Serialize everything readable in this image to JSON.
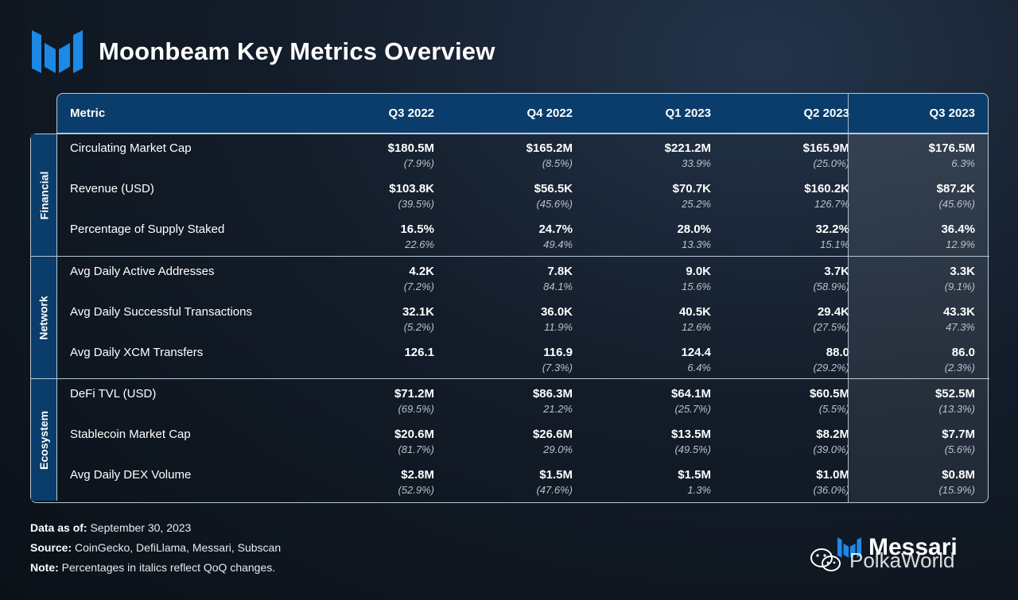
{
  "title": "Moonbeam Key Metrics Overview",
  "colors": {
    "header_bg": "#0a3d6b",
    "accent_blue": "#1e88e5",
    "border": "#b8c7d6"
  },
  "chart_data": {
    "type": "table",
    "title": "Moonbeam Key Metrics Overview",
    "columns": [
      "Metric",
      "Q3 2022",
      "Q4 2022",
      "Q1 2023",
      "Q2 2023",
      "Q3 2023"
    ],
    "sections": [
      {
        "name": "Financial",
        "rows": [
          {
            "metric": "Circulating Market Cap",
            "values": [
              "$180.5M",
              "$165.2M",
              "$221.2M",
              "$165.9M",
              "$176.5M"
            ],
            "changes": [
              "(7.9%)",
              "(8.5%)",
              "33.9%",
              "(25.0%)",
              "6.3%"
            ]
          },
          {
            "metric": "Revenue (USD)",
            "values": [
              "$103.8K",
              "$56.5K",
              "$70.7K",
              "$160.2K",
              "$87.2K"
            ],
            "changes": [
              "(39.5%)",
              "(45.6%)",
              "25.2%",
              "126.7%",
              "(45.6%)"
            ]
          },
          {
            "metric": "Percentage of Supply Staked",
            "values": [
              "16.5%",
              "24.7%",
              "28.0%",
              "32.2%",
              "36.4%"
            ],
            "changes": [
              "22.6%",
              "49.4%",
              "13.3%",
              "15.1%",
              "12.9%"
            ]
          }
        ]
      },
      {
        "name": "Network",
        "rows": [
          {
            "metric": "Avg Daily Active Addresses",
            "values": [
              "4.2K",
              "7.8K",
              "9.0K",
              "3.7K",
              "3.3K"
            ],
            "changes": [
              "(7.2%)",
              "84.1%",
              "15.6%",
              "(58.9%)",
              "(9.1%)"
            ]
          },
          {
            "metric": "Avg Daily Successful Transactions",
            "values": [
              "32.1K",
              "36.0K",
              "40.5K",
              "29.4K",
              "43.3K"
            ],
            "changes": [
              "(5.2%)",
              "11.9%",
              "12.6%",
              "(27.5%)",
              "47.3%"
            ]
          },
          {
            "metric": "Avg Daily XCM Transfers",
            "values": [
              "126.1",
              "116.9",
              "124.4",
              "88.0",
              "86.0"
            ],
            "changes": [
              "",
              "(7.3%)",
              "6.4%",
              "(29.2%)",
              "(2.3%)"
            ]
          }
        ]
      },
      {
        "name": "Ecosystem",
        "rows": [
          {
            "metric": "DeFi TVL (USD)",
            "values": [
              "$71.2M",
              "$86.3M",
              "$64.1M",
              "$60.5M",
              "$52.5M"
            ],
            "changes": [
              "(69.5%)",
              "21.2%",
              "(25.7%)",
              "(5.5%)",
              "(13.3%)"
            ]
          },
          {
            "metric": "Stablecoin Market Cap",
            "values": [
              "$20.6M",
              "$26.6M",
              "$13.5M",
              "$8.2M",
              "$7.7M"
            ],
            "changes": [
              "(81.7%)",
              "29.0%",
              "(49.5%)",
              "(39.0%)",
              "(5.6%)"
            ]
          },
          {
            "metric": "Avg Daily DEX Volume",
            "values": [
              "$2.8M",
              "$1.5M",
              "$1.5M",
              "$1.0M",
              "$0.8M"
            ],
            "changes": [
              "(52.9%)",
              "(47.6%)",
              "1.3%",
              "(36.0%)",
              "(15.9%)"
            ]
          }
        ]
      }
    ]
  },
  "footer": {
    "data_as_of_label": "Data as of:",
    "data_as_of": "September 30, 2023",
    "source_label": "Source:",
    "source": "CoinGecko, DefiLlama, Messari, Subscan",
    "note_label": "Note:",
    "note": "Percentages in italics reflect QoQ changes."
  },
  "brand": {
    "name": "Messari",
    "icon": "messari-logo-icon"
  },
  "watermark": {
    "text": "PolkaWorld",
    "icon": "wechat-icon"
  }
}
